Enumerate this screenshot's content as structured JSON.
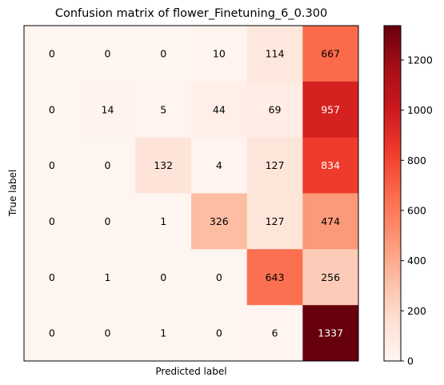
{
  "chart_data": {
    "type": "heatmap",
    "title": "Confusion matrix of flower_Finetuning_6_0.300",
    "xlabel": "Predicted label",
    "ylabel": "True label",
    "colormap": "Reds",
    "vmin": 0,
    "vmax": 1337,
    "matrix": [
      [
        0,
        0,
        0,
        10,
        114,
        667
      ],
      [
        0,
        14,
        5,
        44,
        69,
        957
      ],
      [
        0,
        0,
        132,
        4,
        127,
        834
      ],
      [
        0,
        0,
        1,
        326,
        127,
        474
      ],
      [
        0,
        1,
        0,
        0,
        643,
        256
      ],
      [
        0,
        0,
        1,
        0,
        6,
        1337
      ]
    ],
    "colorbar_ticks": [
      0,
      200,
      400,
      600,
      800,
      1000,
      1200
    ],
    "text_color_light": "#ffffff",
    "text_color_dark": "#000000"
  }
}
